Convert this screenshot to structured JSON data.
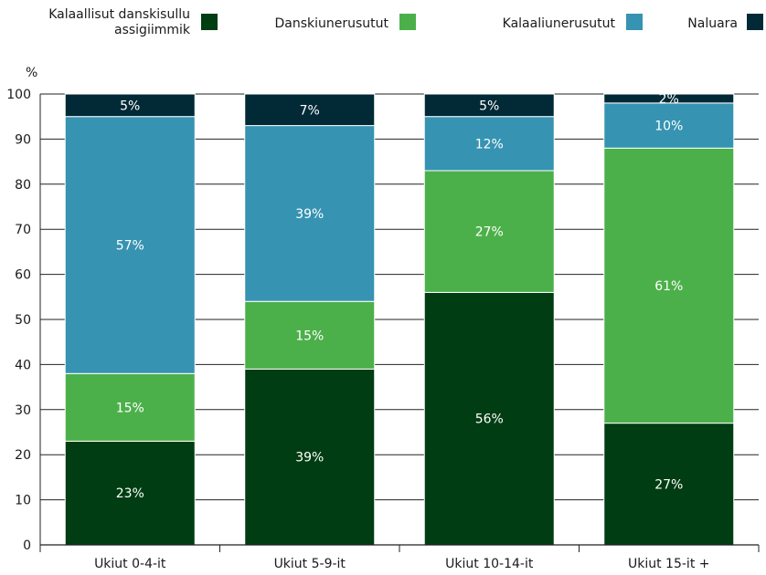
{
  "chart_data": {
    "type": "bar",
    "stacked": true,
    "ylabel": "%",
    "ylim": [
      0,
      100
    ],
    "yticks": [
      0,
      10,
      20,
      30,
      40,
      50,
      60,
      70,
      80,
      90,
      100
    ],
    "grid": true,
    "legend_position": "top",
    "categories": [
      "Ukiut 0-4-it",
      "Ukiut 5-9-it",
      "Ukiut 10-14-it",
      "Ukiut 15-it +"
    ],
    "series": [
      {
        "name": "Kalaallisut danskisullu assigiimmik",
        "legend_lines": [
          "Kalaallisut danskisullu",
          "assigiimmik"
        ],
        "color": "#003d12",
        "values": [
          23,
          39,
          56,
          27
        ]
      },
      {
        "name": "Danskiunerusutut",
        "color": "#4cb04a",
        "values": [
          15,
          15,
          27,
          61
        ]
      },
      {
        "name": "Kalaaliunerusutut",
        "color": "#3693b2",
        "values": [
          57,
          39,
          12,
          10
        ]
      },
      {
        "name": "Naluara",
        "color": "#012a36",
        "values": [
          5,
          7,
          5,
          2
        ]
      }
    ]
  }
}
